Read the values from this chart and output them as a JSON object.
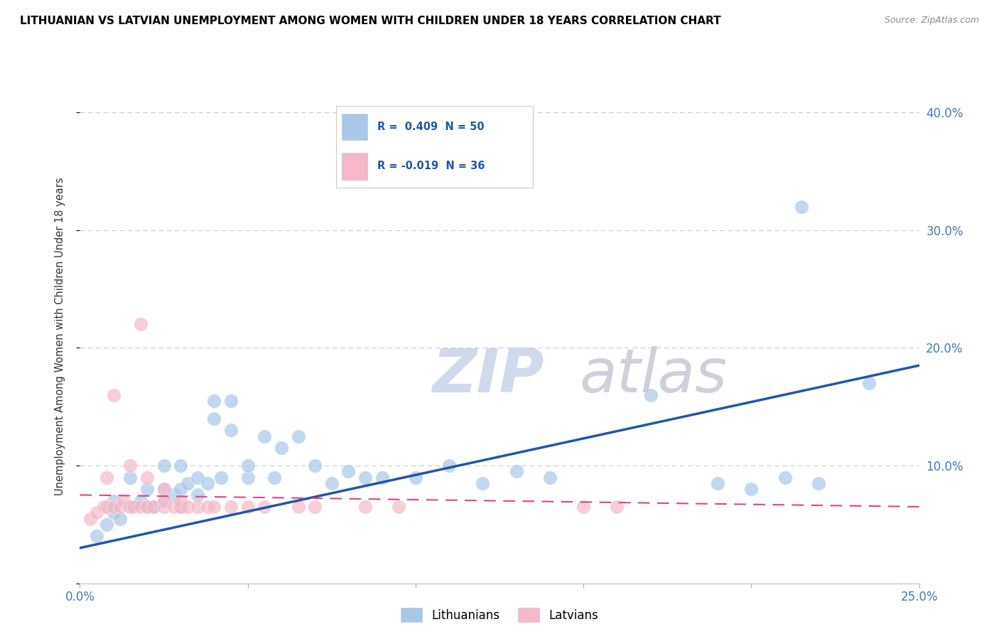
{
  "title": "LITHUANIAN VS LATVIAN UNEMPLOYMENT AMONG WOMEN WITH CHILDREN UNDER 18 YEARS CORRELATION CHART",
  "source": "Source: ZipAtlas.com",
  "ylabel": "Unemployment Among Women with Children Under 18 years",
  "xlim": [
    0.0,
    0.25
  ],
  "ylim": [
    0.0,
    0.42
  ],
  "blue_color": "#a8c8e8",
  "pink_color": "#f4b8c8",
  "blue_line_color": "#2255aa",
  "pink_line_color": "#dd4488",
  "watermark_zip": "ZIP",
  "watermark_atlas": "atlas",
  "blue_scatter_x": [
    0.005,
    0.008,
    0.01,
    0.01,
    0.012,
    0.015,
    0.015,
    0.018,
    0.02,
    0.02,
    0.022,
    0.025,
    0.025,
    0.025,
    0.028,
    0.03,
    0.03,
    0.03,
    0.032,
    0.035,
    0.035,
    0.038,
    0.04,
    0.04,
    0.042,
    0.045,
    0.045,
    0.05,
    0.05,
    0.055,
    0.058,
    0.06,
    0.065,
    0.07,
    0.075,
    0.08,
    0.085,
    0.09,
    0.1,
    0.11,
    0.12,
    0.13,
    0.14,
    0.17,
    0.19,
    0.2,
    0.21,
    0.215,
    0.22,
    0.235
  ],
  "blue_scatter_y": [
    0.04,
    0.05,
    0.06,
    0.07,
    0.055,
    0.065,
    0.09,
    0.07,
    0.065,
    0.08,
    0.065,
    0.07,
    0.08,
    0.1,
    0.075,
    0.065,
    0.08,
    0.1,
    0.085,
    0.075,
    0.09,
    0.085,
    0.14,
    0.155,
    0.09,
    0.13,
    0.155,
    0.09,
    0.1,
    0.125,
    0.09,
    0.115,
    0.125,
    0.1,
    0.085,
    0.095,
    0.09,
    0.09,
    0.09,
    0.1,
    0.085,
    0.095,
    0.09,
    0.16,
    0.085,
    0.08,
    0.09,
    0.32,
    0.085,
    0.17
  ],
  "pink_scatter_x": [
    0.003,
    0.005,
    0.007,
    0.008,
    0.008,
    0.01,
    0.01,
    0.012,
    0.013,
    0.015,
    0.015,
    0.016,
    0.018,
    0.018,
    0.02,
    0.02,
    0.022,
    0.025,
    0.025,
    0.025,
    0.028,
    0.03,
    0.03,
    0.032,
    0.035,
    0.038,
    0.04,
    0.045,
    0.05,
    0.055,
    0.065,
    0.07,
    0.085,
    0.095,
    0.15,
    0.16
  ],
  "pink_scatter_y": [
    0.055,
    0.06,
    0.065,
    0.065,
    0.09,
    0.065,
    0.16,
    0.065,
    0.07,
    0.065,
    0.1,
    0.065,
    0.065,
    0.22,
    0.065,
    0.09,
    0.065,
    0.065,
    0.07,
    0.08,
    0.065,
    0.065,
    0.07,
    0.065,
    0.065,
    0.065,
    0.065,
    0.065,
    0.065,
    0.065,
    0.065,
    0.065,
    0.065,
    0.065,
    0.065,
    0.065
  ],
  "blue_line_x0": 0.0,
  "blue_line_y0": 0.03,
  "blue_line_x1": 0.25,
  "blue_line_y1": 0.185,
  "pink_line_x0": 0.0,
  "pink_line_y0": 0.075,
  "pink_line_x1": 0.25,
  "pink_line_y1": 0.065
}
